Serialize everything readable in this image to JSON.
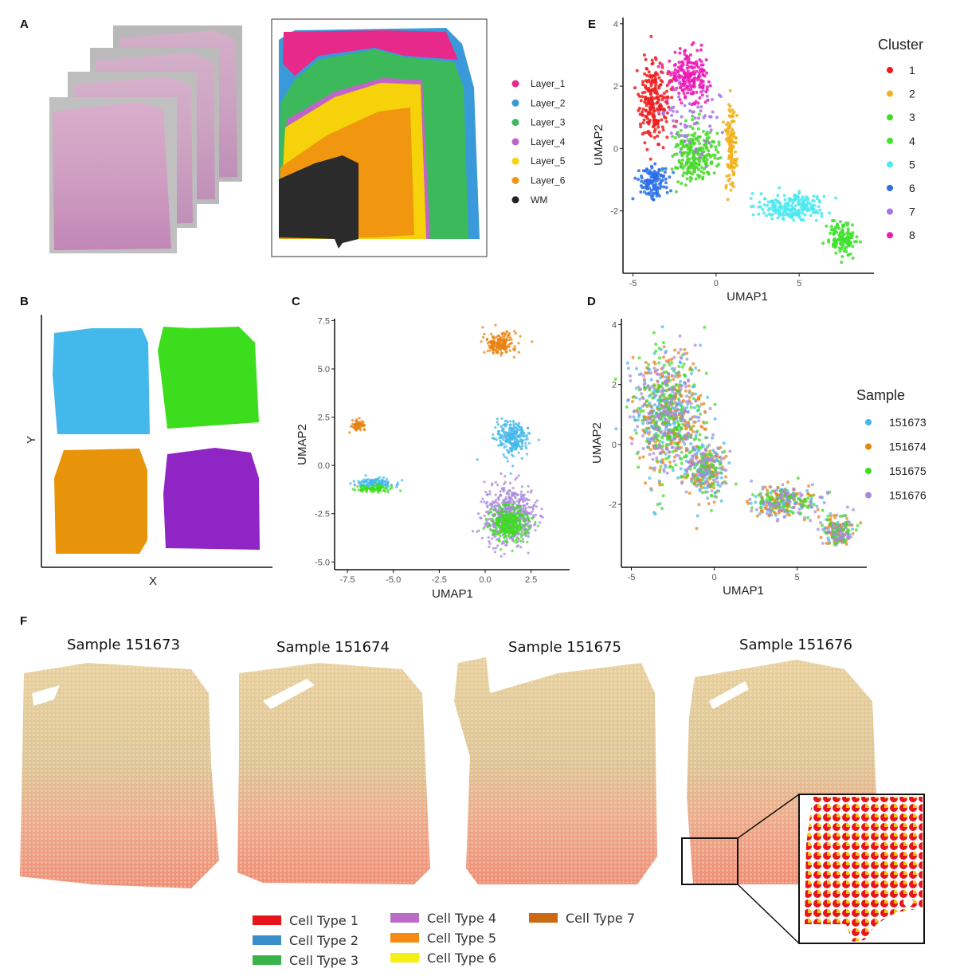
{
  "panels": {
    "A": {
      "label": "A",
      "legend": [
        {
          "name": "Layer_1",
          "color": "#e7298a"
        },
        {
          "name": "Layer_2",
          "color": "#3a9ad9"
        },
        {
          "name": "Layer_3",
          "color": "#3cb95b"
        },
        {
          "name": "Layer_4",
          "color": "#c065c7"
        },
        {
          "name": "Layer_5",
          "color": "#f5d20a"
        },
        {
          "name": "Layer_6",
          "color": "#f0960f"
        },
        {
          "name": "WM",
          "color": "#222222"
        }
      ]
    },
    "B": {
      "label": "B",
      "xlabel": "X",
      "ylabel": "Y",
      "colors": [
        "#43b8ea",
        "#3bdd1c",
        "#e8940b",
        "#8f25c4"
      ]
    },
    "C": {
      "label": "C"
    },
    "D": {
      "label": "D",
      "legend_title": "Sample",
      "legend": [
        {
          "name": "151673",
          "color": "#43b8ea"
        },
        {
          "name": "151674",
          "color": "#e8820f"
        },
        {
          "name": "151675",
          "color": "#3bdd1c"
        },
        {
          "name": "151676",
          "color": "#a788d9"
        }
      ]
    },
    "E": {
      "label": "E",
      "legend_title": "Cluster",
      "legend": [
        {
          "name": "1",
          "color": "#ee1c1c"
        },
        {
          "name": "2",
          "color": "#f2b21b"
        },
        {
          "name": "3",
          "color": "#49d82a"
        },
        {
          "name": "4",
          "color": "#3de22b"
        },
        {
          "name": "5",
          "color": "#4de8f0"
        },
        {
          "name": "6",
          "color": "#2a6ee8"
        },
        {
          "name": "7",
          "color": "#a474e6"
        },
        {
          "name": "8",
          "color": "#ec18b5"
        }
      ]
    },
    "F": {
      "label": "F",
      "samples": [
        "Sample 151673",
        "Sample 151674",
        "Sample 151675",
        "Sample 151676"
      ],
      "legend": [
        {
          "name": "Cell Type 1",
          "color": "#e8141b"
        },
        {
          "name": "Cell Type 2",
          "color": "#3a8ec9"
        },
        {
          "name": "Cell Type 3",
          "color": "#3ab24a"
        },
        {
          "name": "Cell Type 4",
          "color": "#bb6cc6"
        },
        {
          "name": "Cell Type 5",
          "color": "#f58a12"
        },
        {
          "name": "Cell Type 6",
          "color": "#f7ef12"
        },
        {
          "name": "Cell Type 7",
          "color": "#cc6a14"
        }
      ]
    }
  },
  "chart_data": [
    {
      "type": "scatter",
      "panel": "C",
      "xlabel": "UMAP1",
      "ylabel": "UMAP2",
      "xlim": [
        -8.2,
        4.6
      ],
      "ylim": [
        -5.4,
        7.6
      ],
      "xticks": [
        -7.5,
        -5.0,
        -2.5,
        0.0,
        2.5
      ],
      "yticks": [
        -5.0,
        -2.5,
        0.0,
        2.5,
        5.0,
        7.5
      ],
      "xtick_labels": [
        "-7.5",
        "-5.0",
        "-2.5",
        "0.0",
        "2.5"
      ],
      "ytick_labels": [
        "-5.0",
        "-2.5",
        "0.0",
        "2.5",
        "5.0",
        "7.5"
      ],
      "series": [
        {
          "name": "151674",
          "color": "#e8820f",
          "clusters": [
            {
              "cx": 0.8,
              "cy": 6.3,
              "rx": 1.0,
              "ry": 0.65
            },
            {
              "cx": -6.9,
              "cy": 2.1,
              "rx": 0.4,
              "ry": 0.25
            }
          ]
        },
        {
          "name": "151673",
          "color": "#43b8ea",
          "clusters": [
            {
              "cx": 1.5,
              "cy": 1.4,
              "rx": 1.0,
              "ry": 1.0
            },
            {
              "cx": -6.0,
              "cy": -0.9,
              "rx": 1.2,
              "ry": 0.3
            }
          ]
        },
        {
          "name": "151676",
          "color": "#a788d9",
          "clusters": [
            {
              "cx": 1.3,
              "cy": -2.6,
              "rx": 1.5,
              "ry": 1.6
            }
          ]
        },
        {
          "name": "151675",
          "color": "#3bdd1c",
          "clusters": [
            {
              "cx": 1.3,
              "cy": -3.0,
              "rx": 1.2,
              "ry": 1.0
            },
            {
              "cx": -6.0,
              "cy": -1.2,
              "rx": 1.1,
              "ry": 0.2
            }
          ]
        }
      ]
    },
    {
      "type": "scatter",
      "panel": "D",
      "xlabel": "UMAP1",
      "ylabel": "UMAP2",
      "xlim": [
        -5.6,
        9.2
      ],
      "ylim": [
        -4.1,
        4.2
      ],
      "xticks": [
        -5,
        0,
        5
      ],
      "yticks": [
        -2,
        0,
        2,
        4
      ],
      "xtick_labels": [
        "-5",
        "0",
        "5"
      ],
      "ytick_labels": [
        "-2",
        "0",
        "2",
        "4"
      ]
    },
    {
      "type": "scatter",
      "panel": "E",
      "xlabel": "UMAP1",
      "ylabel": "UMAP2",
      "xlim": [
        -5.6,
        9.5
      ],
      "ylim": [
        -4.0,
        4.2
      ],
      "xticks": [
        -5,
        0,
        5
      ],
      "yticks": [
        -2,
        0,
        2,
        4
      ],
      "xtick_labels": [
        "-5",
        "0",
        "5"
      ],
      "ytick_labels": [
        "-2",
        "0",
        "2",
        "4"
      ],
      "clusters": [
        {
          "name": "1",
          "cx": -3.7,
          "cy": 1.5,
          "rx": 1.0,
          "ry": 1.4
        },
        {
          "name": "8",
          "cx": -1.6,
          "cy": 2.3,
          "rx": 1.3,
          "ry": 0.9
        },
        {
          "name": "3",
          "cx": -1.4,
          "cy": -0.2,
          "rx": 1.5,
          "ry": 1.0
        },
        {
          "name": "2",
          "cx": 0.9,
          "cy": 0.0,
          "rx": 0.35,
          "ry": 1.6
        },
        {
          "name": "6",
          "cx": -3.8,
          "cy": -1.1,
          "rx": 0.9,
          "ry": 0.6
        },
        {
          "name": "5",
          "cx": 4.4,
          "cy": -1.9,
          "rx": 2.3,
          "ry": 0.5
        },
        {
          "name": "4",
          "cx": 7.6,
          "cy": -2.9,
          "rx": 1.0,
          "ry": 0.55
        },
        {
          "name": "7",
          "cx": -1.4,
          "cy": 1.0,
          "rx": 1.6,
          "ry": 1.3
        }
      ]
    }
  ]
}
